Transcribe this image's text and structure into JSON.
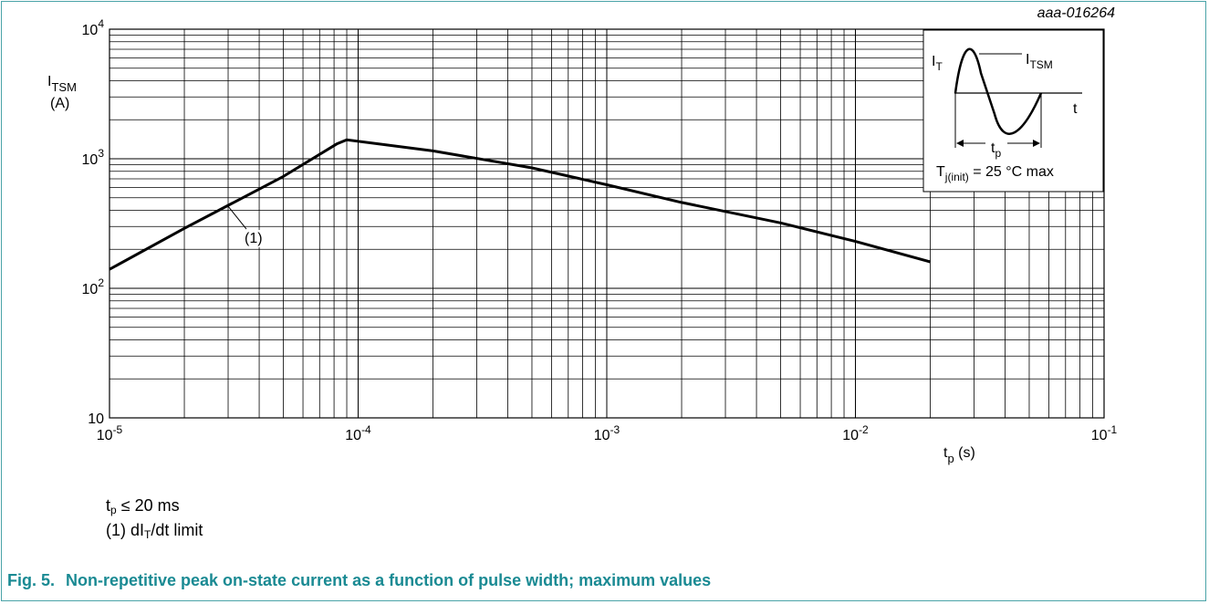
{
  "chart_data": {
    "type": "line",
    "x_scale": "log",
    "y_scale": "log",
    "xlim": [
      1e-05,
      0.1
    ],
    "ylim": [
      10,
      10000
    ],
    "grid": true,
    "figure_id": "aaa-016264",
    "ylabel": {
      "main": "I",
      "sub": "TSM",
      "unit": "(A)"
    },
    "xlabel": {
      "main": "t",
      "sub": "p",
      "unit": " (s)"
    },
    "x_ticks": [
      {
        "value": 1e-05,
        "base": "10",
        "exp": "-5"
      },
      {
        "value": 0.0001,
        "base": "10",
        "exp": "-4"
      },
      {
        "value": 0.001,
        "base": "10",
        "exp": "-3"
      },
      {
        "value": 0.01,
        "base": "10",
        "exp": "-2"
      },
      {
        "value": 0.1,
        "base": "10",
        "exp": "-1"
      }
    ],
    "y_ticks": [
      {
        "value": 10,
        "base": "10",
        "exp": ""
      },
      {
        "value": 100,
        "base": "10",
        "exp": "2"
      },
      {
        "value": 1000,
        "base": "10",
        "exp": "3"
      },
      {
        "value": 10000,
        "base": "10",
        "exp": "4"
      }
    ],
    "series": [
      {
        "x": [
          1e-05,
          2e-05,
          5e-05,
          8.2e-05,
          9e-05,
          0.0002,
          0.0005,
          0.001,
          0.002,
          0.005,
          0.01,
          0.02
        ],
        "y": [
          140,
          290,
          730,
          1300,
          1400,
          1150,
          850,
          630,
          460,
          320,
          230,
          160
        ]
      }
    ],
    "annotation": {
      "label": "(1)",
      "x": 3e-05,
      "y": 430
    },
    "inset": {
      "it_main": "I",
      "it_sub": "T",
      "itsm_main": "I",
      "itsm_sub": "TSM",
      "t_label": "t",
      "tp_main": "t",
      "tp_sub": "p",
      "tj_main": "T",
      "tj_sub": "j(init)",
      "tj_rest": " = 25 °C max"
    }
  },
  "notes": {
    "line1_main": "t",
    "line1_sub": "p",
    "line1_rest": " ≤ 20 ms",
    "line2_pre": "(1) dI",
    "line2_sub": "T",
    "line2_rest": "/dt limit"
  },
  "caption": {
    "number": "Fig. 5.",
    "text": "Non-repetitive peak on-state current as a function of pulse width; maximum values"
  }
}
